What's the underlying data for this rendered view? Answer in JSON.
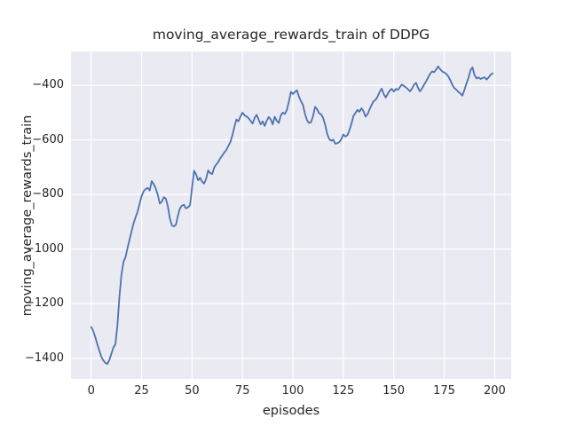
{
  "title": "moving_average_rewards_train of DDPG",
  "colors": {
    "figure_bg": "#ffffff",
    "plot_bg": "#eaeaf2",
    "grid": "#ffffff",
    "line": "#4c72b0",
    "text": "#262626"
  },
  "chart_data": {
    "type": "line",
    "title": "moving_average_rewards_train of DDPG",
    "xlabel": "episodes",
    "ylabel": "moving_average_rewards_train",
    "x_tick_labels": [
      "0",
      "25",
      "50",
      "75",
      "100",
      "125",
      "150",
      "175",
      "200"
    ],
    "x_tick_values": [
      0,
      25,
      50,
      75,
      100,
      125,
      150,
      175,
      200
    ],
    "y_tick_labels": [
      "−400",
      "−600",
      "−800",
      "−1000",
      "−1200",
      "−1400"
    ],
    "y_tick_values": [
      -400,
      -600,
      -800,
      -1000,
      -1200,
      -1400
    ],
    "xlim": [
      -10,
      208.2
    ],
    "ylim": [
      -1476,
      -276
    ],
    "grid": true,
    "legend_position": "none",
    "series": [
      {
        "name": "moving_average_rewards_train",
        "color": "#4c72b0",
        "x_start": 0,
        "x_step": 1,
        "values": [
          -1285,
          -1300,
          -1322,
          -1347,
          -1371,
          -1394,
          -1408,
          -1417,
          -1421,
          -1407,
          -1384,
          -1361,
          -1349,
          -1280,
          -1175,
          -1095,
          -1048,
          -1030,
          -997,
          -966,
          -936,
          -906,
          -884,
          -863,
          -834,
          -806,
          -788,
          -780,
          -776,
          -785,
          -751,
          -762,
          -778,
          -801,
          -833,
          -827,
          -810,
          -815,
          -843,
          -888,
          -913,
          -917,
          -911,
          -878,
          -851,
          -841,
          -838,
          -851,
          -847,
          -839,
          -775,
          -713,
          -726,
          -748,
          -739,
          -753,
          -760,
          -742,
          -712,
          -722,
          -725,
          -701,
          -690,
          -681,
          -667,
          -657,
          -646,
          -637,
          -622,
          -608,
          -583,
          -552,
          -525,
          -532,
          -514,
          -500,
          -510,
          -514,
          -520,
          -530,
          -540,
          -520,
          -508,
          -525,
          -543,
          -532,
          -549,
          -530,
          -516,
          -525,
          -543,
          -515,
          -530,
          -538,
          -510,
          -500,
          -505,
          -490,
          -460,
          -424,
          -432,
          -424,
          -418,
          -442,
          -458,
          -472,
          -505,
          -528,
          -538,
          -535,
          -512,
          -479,
          -488,
          -503,
          -506,
          -520,
          -545,
          -578,
          -597,
          -603,
          -599,
          -614,
          -612,
          -608,
          -597,
          -580,
          -588,
          -583,
          -565,
          -541,
          -512,
          -501,
          -490,
          -497,
          -484,
          -495,
          -515,
          -506,
          -488,
          -472,
          -458,
          -453,
          -441,
          -424,
          -412,
          -432,
          -445,
          -431,
          -419,
          -413,
          -423,
          -413,
          -417,
          -407,
          -397,
          -402,
          -408,
          -414,
          -422,
          -413,
          -398,
          -391,
          -409,
          -422,
          -411,
          -398,
          -386,
          -371,
          -358,
          -349,
          -352,
          -342,
          -331,
          -341,
          -349,
          -353,
          -358,
          -367,
          -381,
          -398,
          -410,
          -416,
          -424,
          -430,
          -438,
          -417,
          -394,
          -373,
          -345,
          -334,
          -362,
          -375,
          -371,
          -377,
          -373,
          -371,
          -379,
          -371,
          -361,
          -356
        ]
      }
    ]
  }
}
